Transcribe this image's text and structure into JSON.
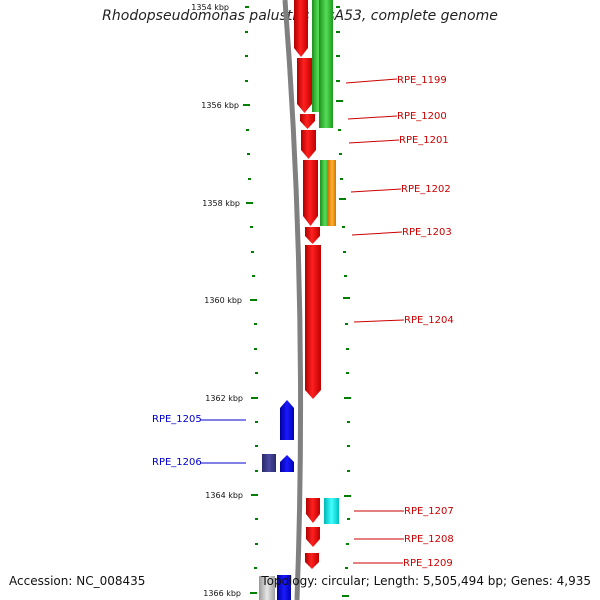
{
  "title": "Rhodopseudomonas palustris BisA53, complete genome",
  "accession_text": "Accession: NC_008435",
  "summary_text": "Topology: circular; Length: 5,505,494 bp; Genes: 4,935",
  "colors": {
    "forward_strand": "#ff0000",
    "reverse_strand": "#0000ff",
    "reverse_strand_dark": "#3a3a8c",
    "frame_green": "#33bb33",
    "frame_orange": "#ff9900",
    "frame_cyan": "#00e5e5",
    "backbone": "#808080",
    "tick": "#008000",
    "label_right": "#cc0000",
    "label_left": "#0000cc"
  },
  "axis": {
    "ticks_kbp": [
      {
        "kbp": 1354,
        "label": "1354 kbp"
      },
      {
        "kbp": 1356,
        "label": "1356 kbp"
      },
      {
        "kbp": 1358,
        "label": "1358 kbp"
      },
      {
        "kbp": 1360,
        "label": "1360 kbp"
      },
      {
        "kbp": 1362,
        "label": "1362 kbp"
      },
      {
        "kbp": 1364,
        "label": "1364 kbp"
      },
      {
        "kbp": 1366,
        "label": "1366 kbp"
      }
    ]
  },
  "genes": [
    {
      "id": "RPE_1199",
      "label": "RPE_1199",
      "strand": "+",
      "start_kbp": 1354.0,
      "end_kbp": 1355.2
    },
    {
      "id": "RPE_1200",
      "label": "RPE_1200",
      "strand": "+",
      "start_kbp": 1355.2,
      "end_kbp": 1355.5
    },
    {
      "id": "RPE_1201",
      "label": "RPE_1201",
      "strand": "+",
      "start_kbp": 1355.5,
      "end_kbp": 1356.1
    },
    {
      "id": "RPE_1202",
      "label": "RPE_1202",
      "strand": "+",
      "start_kbp": 1356.1,
      "end_kbp": 1357.5
    },
    {
      "id": "RPE_1203",
      "label": "RPE_1203",
      "strand": "+",
      "start_kbp": 1357.5,
      "end_kbp": 1357.9
    },
    {
      "id": "RPE_1204",
      "label": "RPE_1204",
      "strand": "+",
      "start_kbp": 1357.9,
      "end_kbp": 1362.0
    },
    {
      "id": "RPE_1205",
      "label": "RPE_1205",
      "strand": "-",
      "start_kbp": 1362.0,
      "end_kbp": 1362.8
    },
    {
      "id": "RPE_1206",
      "label": "RPE_1206",
      "strand": "-",
      "start_kbp": 1363.1,
      "end_kbp": 1363.4
    },
    {
      "id": "RPE_1207",
      "label": "RPE_1207",
      "strand": "+",
      "start_kbp": 1364.1,
      "end_kbp": 1364.6
    },
    {
      "id": "RPE_1208",
      "label": "RPE_1208",
      "strand": "+",
      "start_kbp": 1364.7,
      "end_kbp": 1365.0
    },
    {
      "id": "RPE_1209",
      "label": "RPE_1209",
      "strand": "+",
      "start_kbp": 1365.2,
      "end_kbp": 1365.4
    }
  ]
}
